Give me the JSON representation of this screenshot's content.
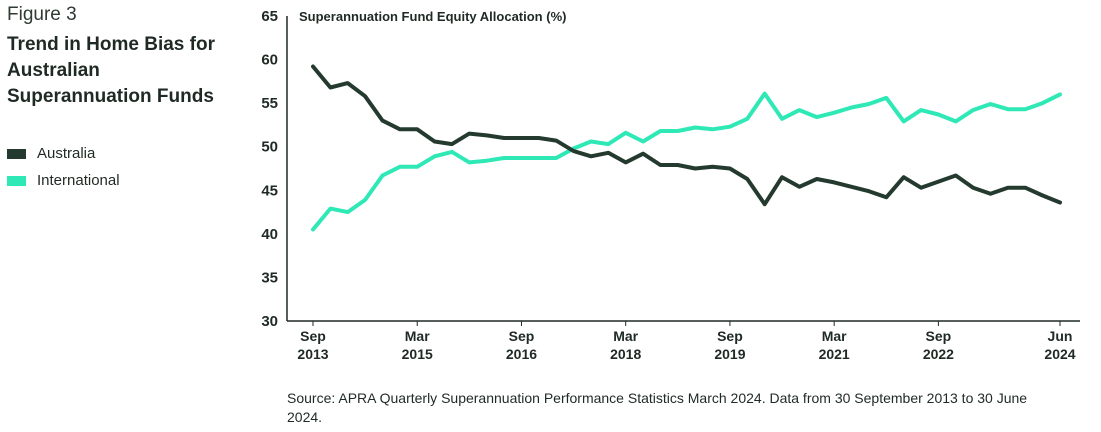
{
  "figure_label": "Figure 3",
  "figure_title": "Trend in Home Bias for Australian Superannuation Funds",
  "source": "Source: APRA Quarterly Superannuation Performance Statistics March 2024. Data from 30 September 2013 to 30 June 2024.",
  "colors": {
    "australia": "#243a2f",
    "international": "#2ee8b6",
    "axis": "#1f2a24"
  },
  "chart_data": {
    "type": "line",
    "title": "Superannuation Fund Equity Allocation (%)",
    "xlabel": "",
    "ylabel": "",
    "ylim": [
      30,
      65
    ],
    "yticks": [
      30,
      35,
      40,
      45,
      50,
      55,
      60,
      65
    ],
    "grid": false,
    "legend_position": "left",
    "x_ticks": [
      {
        "quarter": 0,
        "month": "Sep",
        "year": "2013"
      },
      {
        "quarter": 6,
        "month": "Mar",
        "year": "2015"
      },
      {
        "quarter": 12,
        "month": "Sep",
        "year": "2016"
      },
      {
        "quarter": 18,
        "month": "Mar",
        "year": "2018"
      },
      {
        "quarter": 24,
        "month": "Sep",
        "year": "2019"
      },
      {
        "quarter": 30,
        "month": "Mar",
        "year": "2021"
      },
      {
        "quarter": 36,
        "month": "Sep",
        "year": "2022"
      },
      {
        "quarter": 43,
        "month": "Jun",
        "year": "2024"
      }
    ],
    "x": [
      "Sep 2013",
      "Dec 2013",
      "Mar 2014",
      "Jun 2014",
      "Sep 2014",
      "Dec 2014",
      "Mar 2015",
      "Jun 2015",
      "Sep 2015",
      "Dec 2015",
      "Mar 2016",
      "Jun 2016",
      "Sep 2016",
      "Dec 2016",
      "Mar 2017",
      "Jun 2017",
      "Sep 2017",
      "Dec 2017",
      "Mar 2018",
      "Jun 2018",
      "Sep 2018",
      "Dec 2018",
      "Mar 2019",
      "Jun 2019",
      "Sep 2019",
      "Dec 2019",
      "Mar 2020",
      "Jun 2020",
      "Sep 2020",
      "Dec 2020",
      "Mar 2021",
      "Jun 2021",
      "Sep 2021",
      "Dec 2021",
      "Mar 2022",
      "Jun 2022",
      "Sep 2022",
      "Dec 2022",
      "Mar 2023",
      "Jun 2023",
      "Sep 2023",
      "Dec 2023",
      "Mar 2024",
      "Jun 2024"
    ],
    "series": [
      {
        "name": "Australia",
        "values": [
          59.2,
          56.8,
          57.3,
          55.8,
          53.0,
          52.0,
          52.0,
          50.6,
          50.3,
          51.5,
          51.3,
          51.0,
          51.0,
          51.0,
          50.7,
          49.5,
          48.9,
          49.3,
          48.2,
          49.2,
          47.9,
          47.9,
          47.5,
          47.7,
          47.5,
          46.3,
          43.4,
          46.5,
          45.4,
          46.3,
          45.9,
          45.4,
          44.9,
          44.2,
          46.5,
          45.3,
          46.0,
          46.7,
          45.3,
          44.6,
          45.3,
          45.3,
          44.4,
          43.6
        ]
      },
      {
        "name": "International",
        "values": [
          40.5,
          42.9,
          42.5,
          43.9,
          46.7,
          47.7,
          47.7,
          48.9,
          49.4,
          48.2,
          48.4,
          48.7,
          48.7,
          48.7,
          48.7,
          49.8,
          50.6,
          50.3,
          51.6,
          50.6,
          51.8,
          51.8,
          52.2,
          52.0,
          52.3,
          53.2,
          56.1,
          53.2,
          54.2,
          53.4,
          53.9,
          54.5,
          54.9,
          55.6,
          52.9,
          54.2,
          53.7,
          52.9,
          54.2,
          54.9,
          54.3,
          54.3,
          55.0,
          56.0
        ]
      }
    ]
  }
}
